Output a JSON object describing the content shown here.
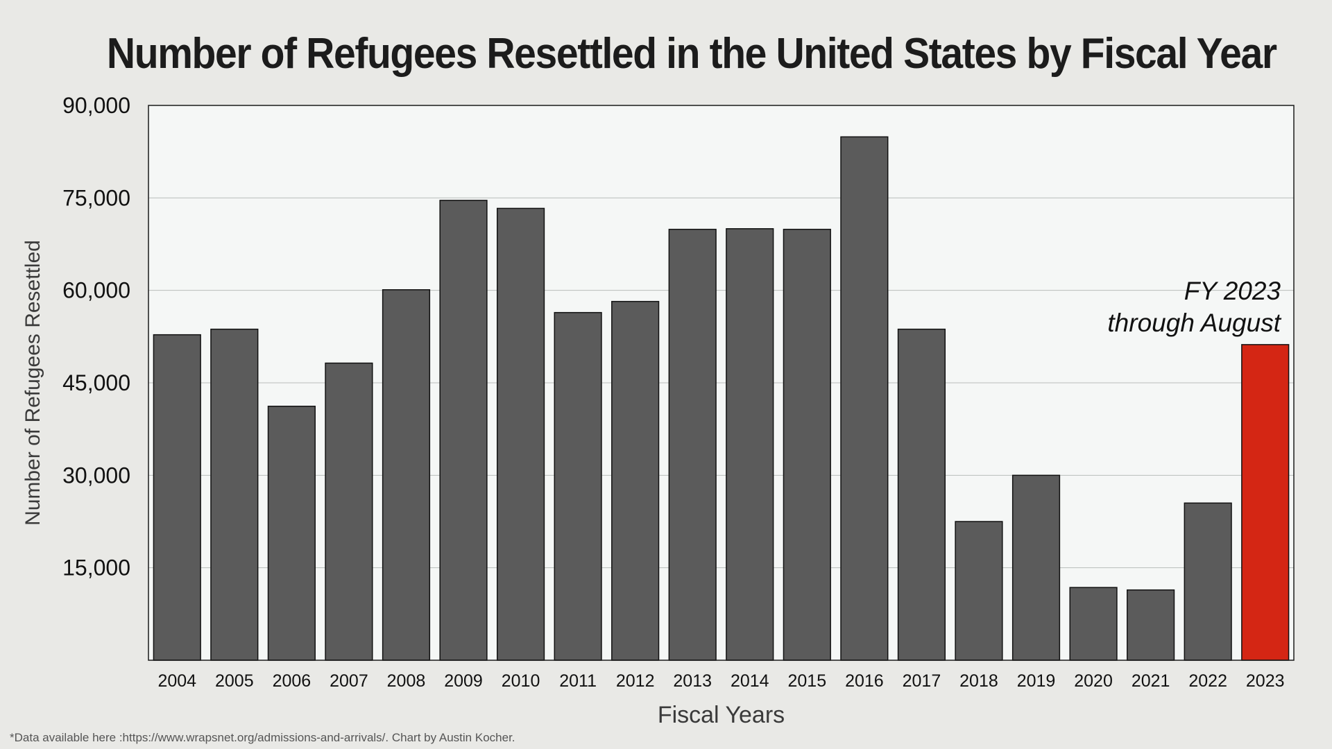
{
  "chart_data": {
    "type": "bar",
    "title": "Number of Refugees Resettled in the United States by Fiscal Year",
    "xlabel": "Fiscal Years",
    "ylabel": "Number of Refugees Resettled",
    "ylim": [
      0,
      90000
    ],
    "yticks": [
      15000,
      30000,
      45000,
      60000,
      75000,
      90000
    ],
    "ytick_labels": [
      "15,000",
      "30,000",
      "45,000",
      "60,000",
      "75,000",
      "90,000"
    ],
    "grid": true,
    "categories": [
      "2004",
      "2005",
      "2006",
      "2007",
      "2008",
      "2009",
      "2010",
      "2011",
      "2012",
      "2013",
      "2014",
      "2015",
      "2016",
      "2017",
      "2018",
      "2019",
      "2020",
      "2021",
      "2022",
      "2023"
    ],
    "values": [
      52800,
      53700,
      41200,
      48200,
      60100,
      74600,
      73300,
      56400,
      58200,
      69900,
      70000,
      69900,
      84900,
      53700,
      22500,
      30000,
      11800,
      11400,
      25500,
      51200
    ],
    "colors": {
      "bar": "#5b5b5b",
      "highlight": "#d42614",
      "plot_background": "#f5f7f6",
      "gridline": "#b9bdbb",
      "border": "#1a1a1a"
    },
    "highlight_category": "2023",
    "annotation": {
      "line1": "FY 2023",
      "line2": "through August"
    }
  },
  "footnote": "*Data available here :https://www.wrapsnet.org/admissions-and-arrivals/. Chart by Austin Kocher."
}
